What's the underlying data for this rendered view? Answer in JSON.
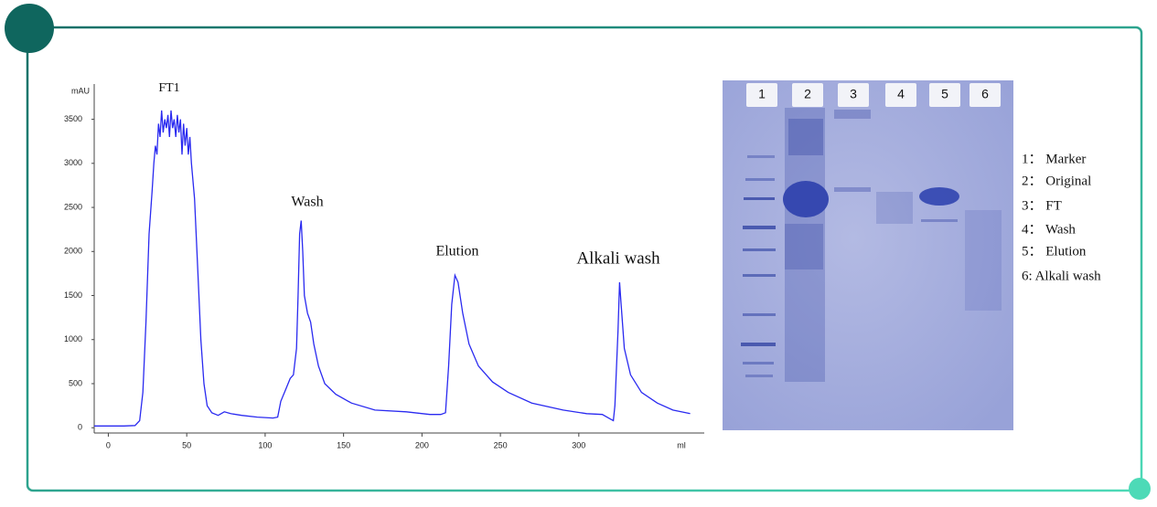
{
  "chart_data": {
    "type": "line",
    "y_axis_label": "mAU",
    "x_axis_label": "ml",
    "annotations": [
      "FT1",
      "Wash",
      "Elution",
      "Alkali wash"
    ],
    "x": [
      -9,
      0,
      10,
      17,
      20,
      22,
      24,
      26,
      28,
      29,
      30,
      31,
      32,
      33,
      34,
      35,
      36,
      37,
      38,
      39,
      40,
      41,
      42,
      43,
      44,
      45,
      46,
      47,
      48,
      49,
      50,
      51,
      52,
      53,
      55,
      57,
      59,
      61,
      63,
      66,
      70,
      74,
      78,
      85,
      95,
      105,
      108,
      110,
      113,
      116,
      118,
      120,
      121,
      122,
      123,
      124,
      125,
      127,
      129,
      131,
      134,
      138,
      145,
      155,
      170,
      190,
      205,
      212,
      215,
      217,
      219,
      221,
      223,
      226,
      230,
      236,
      245,
      255,
      270,
      290,
      305,
      315,
      320,
      322,
      323,
      325,
      326,
      327,
      329,
      333,
      340,
      350,
      360,
      371
    ],
    "series": [
      {
        "color": "#2a2af0",
        "values": [
          20,
          20,
          20,
          25,
          80,
          400,
          1200,
          2200,
          2700,
          3000,
          3200,
          3100,
          3450,
          3300,
          3600,
          3350,
          3500,
          3400,
          3550,
          3300,
          3600,
          3400,
          3500,
          3300,
          3550,
          3350,
          3500,
          3100,
          3450,
          3200,
          3400,
          3100,
          3300,
          3000,
          2600,
          1800,
          1000,
          500,
          250,
          170,
          140,
          180,
          160,
          140,
          120,
          110,
          120,
          300,
          430,
          560,
          600,
          900,
          1500,
          2200,
          2350,
          2000,
          1500,
          1300,
          1200,
          950,
          700,
          500,
          380,
          280,
          200,
          180,
          150,
          150,
          170,
          700,
          1400,
          1730,
          1650,
          1300,
          950,
          700,
          520,
          400,
          280,
          200,
          160,
          150,
          100,
          80,
          250,
          1100,
          1650,
          1400,
          900,
          600,
          400,
          280,
          200,
          160
        ]
      }
    ],
    "xlim": [
      -9,
      380
    ],
    "ylim": [
      -60,
      3900
    ],
    "xticks": [
      0,
      50,
      100,
      150,
      200,
      250,
      300
    ],
    "yticks": [
      0,
      500,
      1000,
      1500,
      2000,
      2500,
      3000,
      3500
    ]
  },
  "gel": {
    "lane_labels": [
      "1",
      "2",
      "3",
      "4",
      "5",
      "6"
    ],
    "legend": [
      "1： Marker",
      "2： Original",
      "3： FT",
      "4： Wash",
      "5： Elution",
      "6: Alkali wash"
    ]
  }
}
